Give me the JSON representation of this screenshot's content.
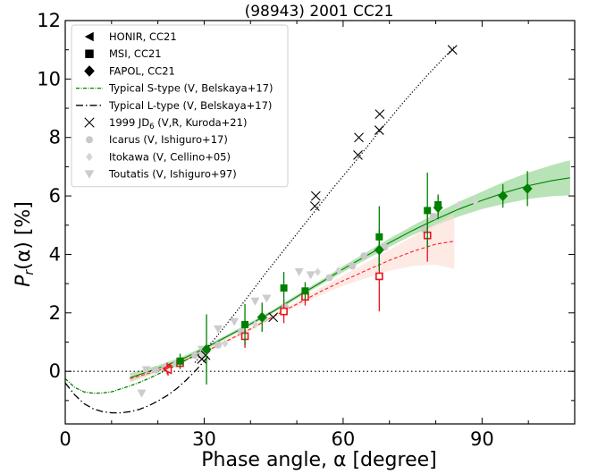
{
  "chart_data": {
    "type": "scatter",
    "title": "(98943) 2001 CC21",
    "xlabel": "Phase angle, α [degree]",
    "ylabel": "Pr(α) [%]",
    "ylabel_parts": {
      "main": "P",
      "sub": "r",
      "rest": "(α) [%]"
    },
    "xlim": [
      0,
      110
    ],
    "ylim": [
      -1.8,
      12
    ],
    "xticks": [
      0,
      30,
      60,
      90
    ],
    "yticks": [
      0,
      2,
      4,
      6,
      8,
      10,
      12
    ],
    "zero_line": true,
    "grid": false,
    "legend_position": "top-left",
    "series": [
      {
        "key": "honir",
        "name": "HONIR, CC21",
        "marker": "triangle-left",
        "color": "#e8131b",
        "points": [
          [
            22.0,
            0.1,
            0.2
          ],
          [
            22.2,
            0.05,
            0.2
          ]
        ]
      },
      {
        "key": "msi",
        "name": "MSI, CC21",
        "marker": "square",
        "color": "#e8131b",
        "points": [
          [
            24.8,
            0.28,
            0.2
          ],
          [
            38.8,
            1.2,
            0.4
          ],
          [
            47.2,
            2.05,
            0.4
          ],
          [
            51.8,
            2.55,
            0.3
          ],
          [
            67.8,
            3.25,
            1.2
          ],
          [
            78.2,
            4.65,
            0.9
          ]
        ]
      },
      {
        "key": "fapol",
        "name": "FAPOL, CC21",
        "marker": "diamond",
        "color": "#008000",
        "points": [
          [
            30.5,
            0.75,
            1.2
          ],
          [
            42.5,
            1.85,
            0.5
          ],
          [
            67.8,
            4.15,
            0.7
          ],
          [
            80.5,
            5.6,
            0.4
          ],
          [
            94.5,
            6.0,
            0.4
          ],
          [
            99.8,
            6.25,
            0.6
          ]
        ]
      },
      {
        "key": "typical_s",
        "name": "Typical S-type (V, Belskaya+17)",
        "line": "dashdot-dense",
        "color": "#008000"
      },
      {
        "key": "typical_l",
        "name": "Typical L-type (V, Belskaya+17)",
        "line": "dashdot",
        "color": "#000000"
      },
      {
        "key": "jd6",
        "name": "1999 JD6 (V,R, Kuroda+21)",
        "name_parts": {
          "main": "1999 JD",
          "sub": "6",
          "rest": " (V,R, Kuroda+21)"
        },
        "marker": "x",
        "color": "#000000",
        "points": [
          [
            29.5,
            0.42
          ],
          [
            30.3,
            0.55
          ],
          [
            44.9,
            1.85
          ],
          [
            53.9,
            5.65
          ],
          [
            54.1,
            6.0
          ],
          [
            63.2,
            7.4
          ],
          [
            63.4,
            8.0
          ],
          [
            67.8,
            8.25
          ],
          [
            67.9,
            8.8
          ],
          [
            83.6,
            11.0
          ]
        ]
      },
      {
        "key": "icarus",
        "name": "Icarus (V, Ishiguro+17)",
        "marker": "circle",
        "color": "#c9c9c9",
        "points": [
          [
            19.5,
            0.05
          ],
          [
            21.5,
            0.15
          ],
          [
            24.0,
            0.25
          ],
          [
            28.0,
            0.55
          ],
          [
            33.0,
            0.9
          ],
          [
            38.0,
            1.35
          ],
          [
            43.0,
            1.8
          ],
          [
            47.5,
            2.2
          ],
          [
            52.0,
            2.7
          ],
          [
            57.0,
            3.2
          ],
          [
            62.0,
            3.6
          ],
          [
            64.5,
            3.95
          ],
          [
            69.0,
            4.25
          ],
          [
            77.5,
            4.85
          ],
          [
            79.5,
            5.3
          ]
        ]
      },
      {
        "key": "itokawa",
        "name": "Itokawa (V, Cellino+05)",
        "marker": "diamond-small",
        "color": "#d4d4d4",
        "points": [
          [
            29.5,
            0.6
          ],
          [
            34.5,
            0.95
          ],
          [
            41.0,
            1.6
          ],
          [
            54.5,
            3.4
          ],
          [
            59.0,
            3.45
          ],
          [
            85.0,
            5.7
          ],
          [
            88.5,
            5.8
          ]
        ]
      },
      {
        "key": "toutatis",
        "name": "Toutatis (V, Ishiguro+97)",
        "marker": "triangle-down",
        "color": "#cccccc",
        "points": [
          [
            16.5,
            -0.75
          ],
          [
            17.5,
            0.05
          ],
          [
            29.5,
            0.75
          ],
          [
            33.0,
            1.45
          ],
          [
            36.5,
            1.7
          ],
          [
            41.0,
            2.4
          ],
          [
            43.5,
            2.5
          ],
          [
            50.5,
            3.4
          ],
          [
            53.0,
            3.3
          ]
        ]
      }
    ],
    "fits": [
      {
        "key": "fit_green",
        "color": "#008000",
        "style": "solid",
        "band_color": "#7ccc7c",
        "x": [
          14,
          20,
          25,
          30,
          35,
          40,
          45,
          50,
          55,
          60,
          65,
          70,
          75,
          80,
          85,
          90,
          95,
          100,
          105,
          109
        ],
        "y": [
          -0.22,
          0.1,
          0.4,
          0.78,
          1.2,
          1.62,
          2.06,
          2.55,
          3.02,
          3.5,
          3.95,
          4.4,
          4.82,
          5.2,
          5.55,
          5.85,
          6.12,
          6.35,
          6.52,
          6.62
        ],
        "band_half": [
          0.15,
          0.1,
          0.08,
          0.07,
          0.06,
          0.06,
          0.06,
          0.07,
          0.08,
          0.1,
          0.12,
          0.14,
          0.16,
          0.2,
          0.25,
          0.3,
          0.38,
          0.45,
          0.53,
          0.6
        ]
      },
      {
        "key": "fit_red",
        "color": "#ff2020",
        "style": "dashed",
        "band_color": "#fcd9d0",
        "x": [
          14,
          20,
          25,
          30,
          35,
          40,
          45,
          50,
          55,
          60,
          65,
          70,
          75,
          80,
          84
        ],
        "y": [
          -0.25,
          0.02,
          0.32,
          0.65,
          1.05,
          1.45,
          1.88,
          2.3,
          2.72,
          3.1,
          3.45,
          3.8,
          4.1,
          4.35,
          4.45
        ],
        "band_half": [
          0.12,
          0.08,
          0.06,
          0.06,
          0.06,
          0.06,
          0.07,
          0.09,
          0.12,
          0.18,
          0.26,
          0.36,
          0.5,
          0.7,
          0.95
        ]
      }
    ],
    "reference_curves": [
      {
        "key": "typical_s",
        "color": "#008000",
        "style": "dashdot-dense",
        "x": [
          0,
          2,
          4,
          6,
          8,
          10,
          12,
          14,
          16,
          18,
          20,
          22,
          25,
          28,
          31
        ],
        "y": [
          -0.25,
          -0.55,
          -0.7,
          -0.75,
          -0.74,
          -0.7,
          -0.6,
          -0.5,
          -0.38,
          -0.25,
          -0.1,
          0.05,
          0.3,
          0.55,
          0.8
        ]
      },
      {
        "key": "typical_l",
        "color": "#000000",
        "style": "dashdot",
        "x": [
          0,
          2,
          4,
          6,
          8,
          10,
          12,
          14,
          16,
          18,
          20,
          22,
          24,
          26,
          28,
          30,
          31
        ],
        "y": [
          -0.4,
          -0.8,
          -1.1,
          -1.28,
          -1.38,
          -1.42,
          -1.42,
          -1.38,
          -1.3,
          -1.18,
          -1.02,
          -0.83,
          -0.6,
          -0.32,
          0.0,
          0.35,
          0.55
        ]
      },
      {
        "key": "jd6_trend",
        "color": "#000000",
        "style": "dotted",
        "x": [
          28,
          33,
          38,
          43,
          48,
          53,
          58,
          63,
          68,
          73,
          78,
          84
        ],
        "y": [
          0.3,
          1.25,
          2.25,
          3.3,
          4.3,
          5.3,
          6.3,
          7.25,
          8.25,
          9.2,
          10.1,
          11.1
        ]
      }
    ]
  }
}
